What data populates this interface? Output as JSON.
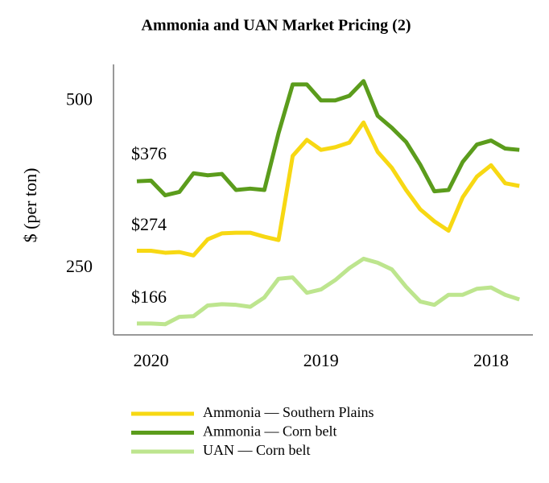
{
  "chart_data": {
    "type": "line",
    "title": "Ammonia and UAN Market Pricing (2)",
    "y_label": "$ (per ton)",
    "categories": [
      null,
      "2020",
      null,
      null,
      null,
      null,
      null,
      null,
      null,
      null,
      null,
      null,
      null,
      "2019",
      null,
      null,
      null,
      null,
      null,
      null,
      null,
      null,
      null,
      null,
      null,
      "2018",
      null,
      null
    ],
    "ylim": [
      150,
      555
    ],
    "yticks": [
      250,
      500
    ],
    "grid": false,
    "legend": "bottom",
    "series": [
      {
        "name": "Ammonia — Southern Plains",
        "color": "#f7d813",
        "values": [
          276,
          276,
          273,
          274,
          269,
          293,
          302,
          303,
          303,
          297,
          292,
          418,
          442,
          427,
          431,
          438,
          468,
          424,
          400,
          367,
          338,
          320,
          306,
          356,
          387,
          404,
          377,
          373
        ]
      },
      {
        "name": "Ammonia — Corn belt",
        "color": "#5b9c1c",
        "values": [
          380,
          381,
          359,
          364,
          392,
          389,
          391,
          367,
          369,
          367,
          452,
          525,
          525,
          501,
          501,
          508,
          530,
          478,
          460,
          439,
          405,
          365,
          367,
          409,
          435,
          441,
          429,
          427
        ]
      },
      {
        "name": "UAN — Corn belt",
        "color": "#bde58e",
        "values": [
          167,
          167,
          166,
          177,
          178,
          194,
          196,
          195,
          192,
          206,
          234,
          236,
          213,
          218,
          232,
          250,
          264,
          258,
          248,
          222,
          200,
          195,
          210,
          210,
          219,
          221,
          210,
          203
        ]
      }
    ],
    "annotations": [
      "$376",
      "$274",
      "$166"
    ]
  }
}
